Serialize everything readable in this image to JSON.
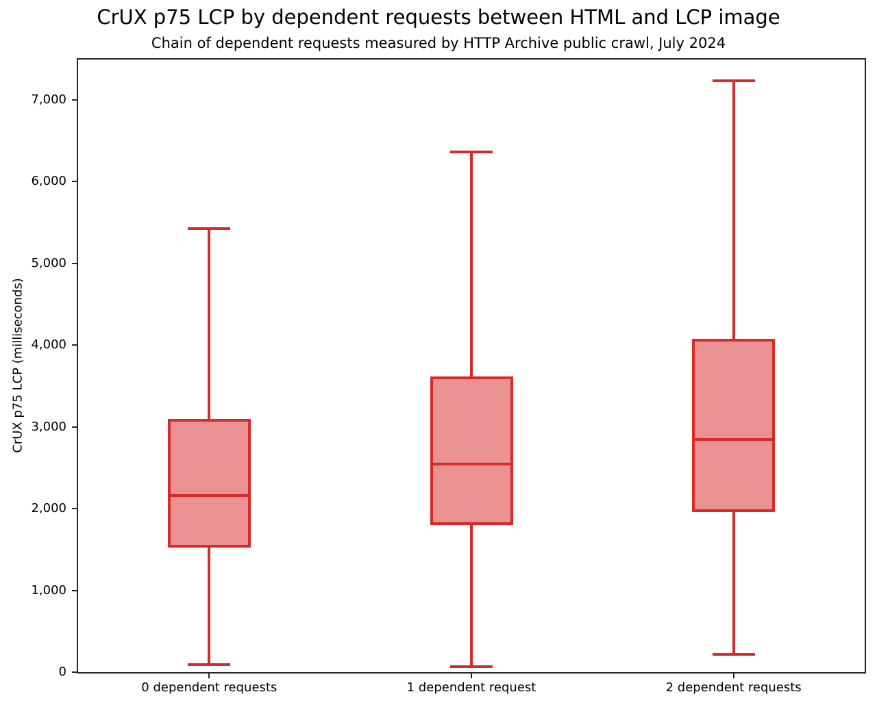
{
  "chart_data": {
    "type": "boxplot",
    "title": "CrUX p75 LCP by dependent requests between HTML and LCP image",
    "subtitle": "Chain of dependent requests measured by HTTP Archive public crawl, July 2024",
    "xlabel": "",
    "ylabel": "CrUX p75 LCP (milliseconds)",
    "categories": [
      "0 dependent requests",
      "1 dependent request",
      "2 dependent requests"
    ],
    "boxes": [
      {
        "category": "0 dependent requests",
        "whisker_low": 90,
        "q1": 1525,
        "median": 2155,
        "q3": 3095,
        "whisker_high": 5420
      },
      {
        "category": "1 dependent request",
        "whisker_low": 70,
        "q1": 1800,
        "median": 2540,
        "q3": 3615,
        "whisker_high": 6360
      },
      {
        "category": "2 dependent requests",
        "whisker_low": 215,
        "q1": 1955,
        "median": 2845,
        "q3": 4075,
        "whisker_high": 7230
      }
    ],
    "y_ticks": [
      {
        "value": 0,
        "label": "0"
      },
      {
        "value": 1000,
        "label": "1,000"
      },
      {
        "value": 2000,
        "label": "2,000"
      },
      {
        "value": 3000,
        "label": "3,000"
      },
      {
        "value": 4000,
        "label": "4,000"
      },
      {
        "value": 5000,
        "label": "5,000"
      },
      {
        "value": 6000,
        "label": "6,000"
      },
      {
        "value": 7000,
        "label": "7,000"
      }
    ],
    "ylim": [
      0,
      7490
    ],
    "grid": false,
    "legend": null,
    "colors": {
      "box_edge": "#d62b2b",
      "box_fill": "#ea9192",
      "axis": "#262626",
      "text": "#000000"
    }
  }
}
